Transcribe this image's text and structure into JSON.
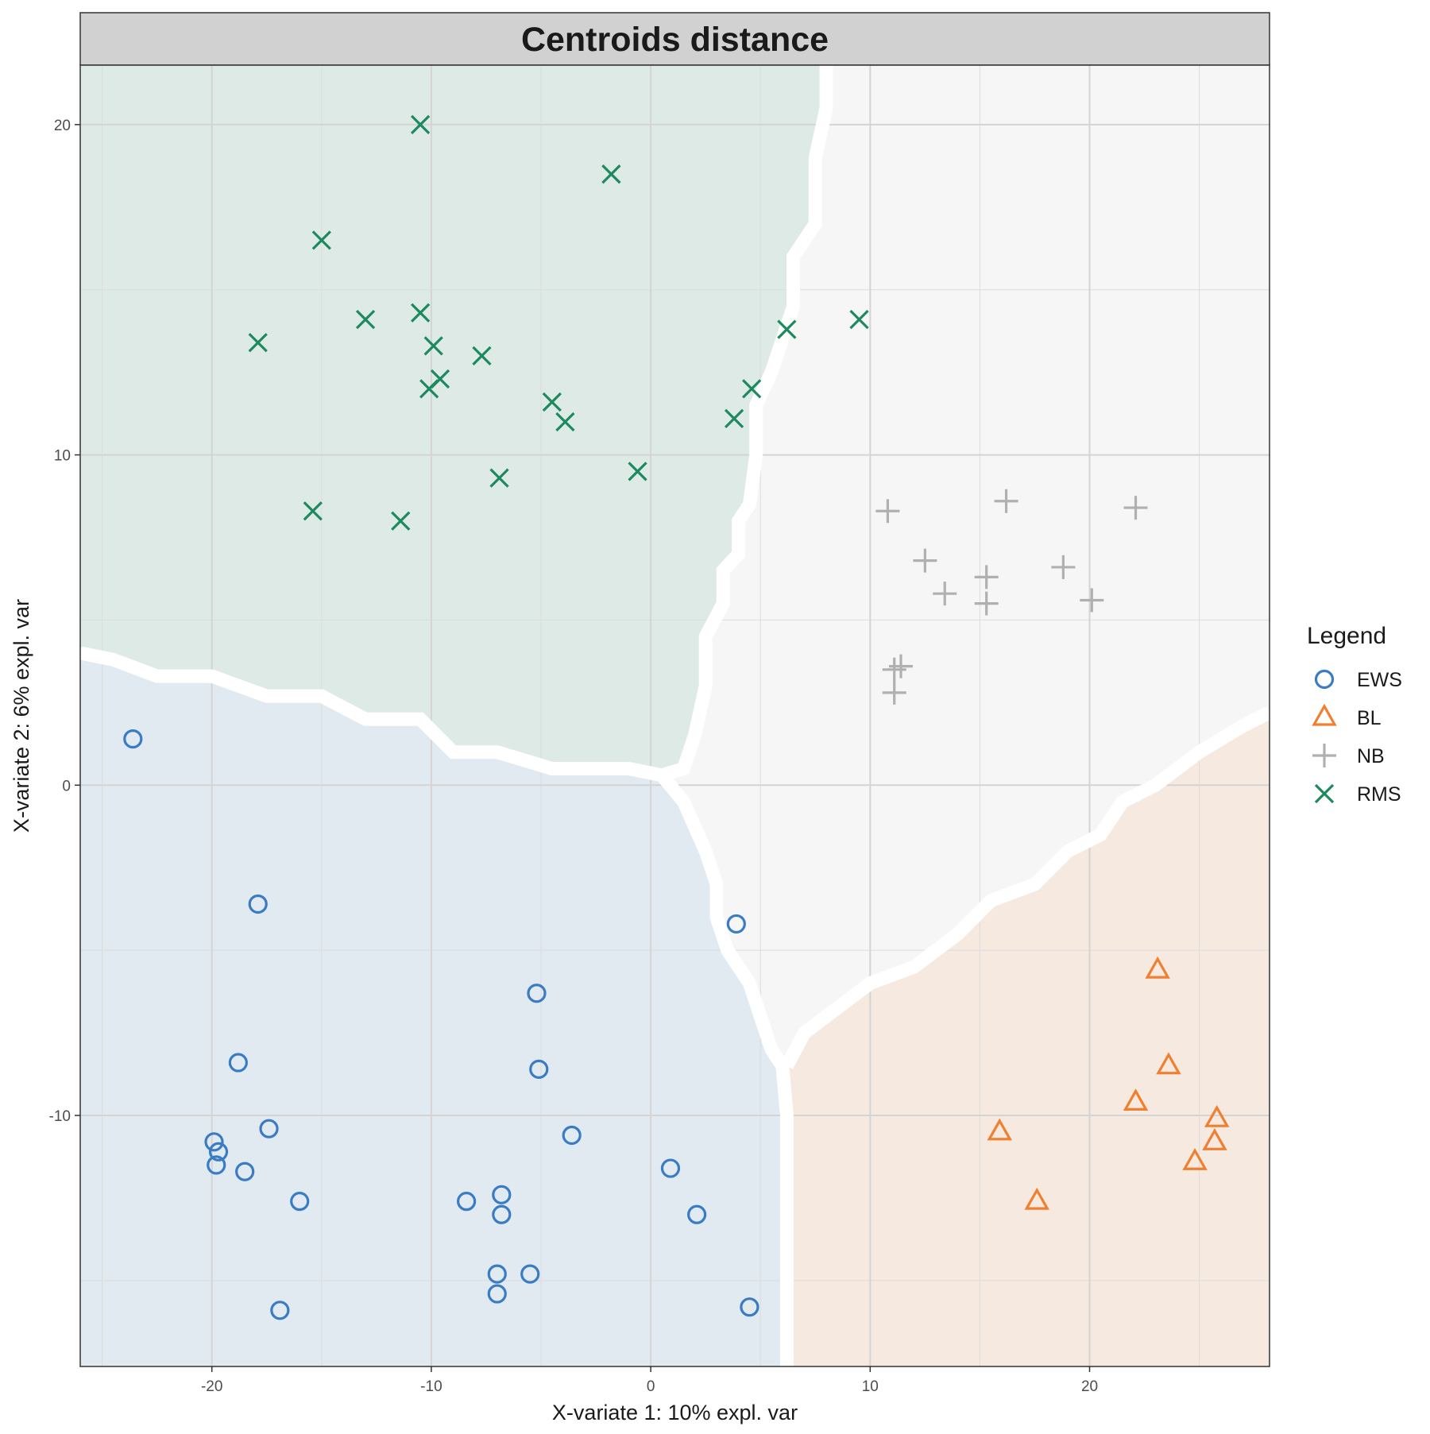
{
  "chart_data": {
    "type": "scatter",
    "title": "Centroids distance",
    "xlabel": "X-variate 1: 10% expl. var",
    "ylabel": "X-variate 2: 6% expl. var",
    "xlim": [
      -26,
      28.2
    ],
    "ylim": [
      -17.6,
      21.8
    ],
    "xticks": [
      -20,
      -10,
      0,
      10,
      20
    ],
    "yticks": [
      -10,
      0,
      10,
      20
    ],
    "grid": true,
    "legend": {
      "title": "Legend",
      "position": "right"
    },
    "series": [
      {
        "name": "EWS",
        "marker": "circle",
        "color": "#3A7CC4",
        "points": [
          [
            -23.6,
            1.4
          ],
          [
            -17.9,
            -3.6
          ],
          [
            3.9,
            -4.2
          ],
          [
            -5.2,
            -6.3
          ],
          [
            -18.8,
            -8.4
          ],
          [
            -5.1,
            -8.6
          ],
          [
            -17.4,
            -10.4
          ],
          [
            -3.6,
            -10.6
          ],
          [
            -19.9,
            -10.8
          ],
          [
            -19.7,
            -11.1
          ],
          [
            -19.8,
            -11.5
          ],
          [
            -18.5,
            -11.7
          ],
          [
            0.9,
            -11.6
          ],
          [
            -16.0,
            -12.6
          ],
          [
            -8.4,
            -12.6
          ],
          [
            -6.8,
            -12.4
          ],
          [
            -6.8,
            -13.0
          ],
          [
            2.1,
            -13.0
          ],
          [
            -7.0,
            -14.8
          ],
          [
            -5.5,
            -14.8
          ],
          [
            -7.0,
            -15.4
          ],
          [
            -16.9,
            -15.9
          ],
          [
            4.5,
            -15.8
          ]
        ]
      },
      {
        "name": "BL",
        "marker": "triangle",
        "color": "#F07F30",
        "points": [
          [
            23.1,
            -5.6
          ],
          [
            23.6,
            -8.5
          ],
          [
            22.1,
            -9.6
          ],
          [
            25.8,
            -10.1
          ],
          [
            15.9,
            -10.5
          ],
          [
            25.7,
            -10.8
          ],
          [
            24.8,
            -11.4
          ],
          [
            17.6,
            -12.6
          ]
        ]
      },
      {
        "name": "NB",
        "marker": "plus",
        "color": "#B0B0B0",
        "points": [
          [
            16.2,
            8.6
          ],
          [
            22.1,
            8.4
          ],
          [
            10.8,
            8.3
          ],
          [
            12.5,
            6.8
          ],
          [
            18.8,
            6.6
          ],
          [
            15.3,
            6.3
          ],
          [
            13.4,
            5.8
          ],
          [
            20.1,
            5.6
          ],
          [
            15.3,
            5.5
          ],
          [
            11.4,
            3.6
          ],
          [
            11.1,
            3.5
          ],
          [
            11.1,
            2.8
          ]
        ]
      },
      {
        "name": "RMS",
        "marker": "x",
        "color": "#1C8A5E",
        "points": [
          [
            -10.5,
            20.0
          ],
          [
            -1.8,
            18.5
          ],
          [
            -15.0,
            16.5
          ],
          [
            -10.5,
            14.3
          ],
          [
            -13.0,
            14.1
          ],
          [
            9.5,
            14.1
          ],
          [
            -17.9,
            13.4
          ],
          [
            6.2,
            13.8
          ],
          [
            -9.9,
            13.3
          ],
          [
            -7.7,
            13.0
          ],
          [
            -9.6,
            12.3
          ],
          [
            -10.1,
            12.0
          ],
          [
            4.6,
            12.0
          ],
          [
            -4.5,
            11.6
          ],
          [
            -3.9,
            11.0
          ],
          [
            3.8,
            11.1
          ],
          [
            -6.9,
            9.3
          ],
          [
            -0.6,
            9.5
          ],
          [
            -15.4,
            8.3
          ],
          [
            -11.4,
            8.0
          ]
        ]
      }
    ],
    "regions": [
      {
        "class": "EWS",
        "color": "#3A7CC4"
      },
      {
        "class": "BL",
        "color": "#F07F30"
      },
      {
        "class": "NB",
        "color": "#B0B0B0"
      },
      {
        "class": "RMS",
        "color": "#1C8A5E"
      }
    ]
  }
}
